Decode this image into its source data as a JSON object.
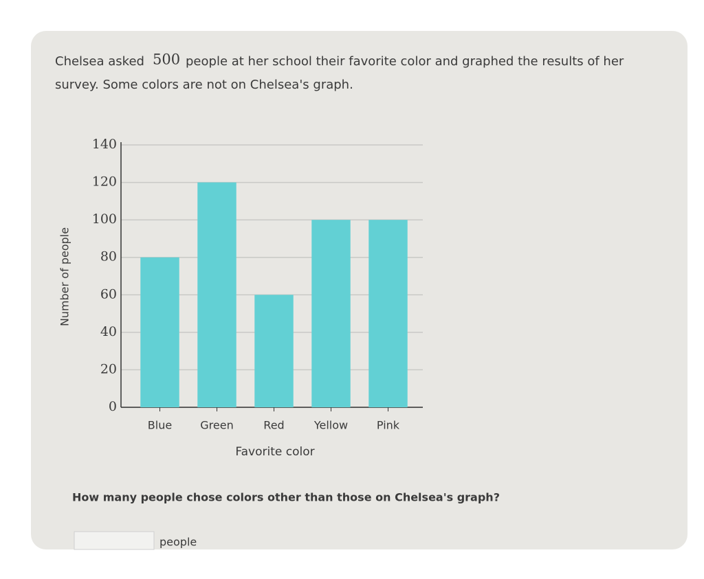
{
  "question": {
    "intro_start": "Chelsea asked",
    "total_people": 500,
    "intro_end": "people at her school their favorite color and graphed the results of her",
    "intro_line2": "survey. Some colors are not on Chelsea's graph.",
    "prompt": "How many people chose colors other than those on Chelsea's graph?",
    "unit": "people"
  },
  "chart_data": {
    "type": "bar",
    "categories": [
      "Blue",
      "Green",
      "Red",
      "Yellow",
      "Pink"
    ],
    "values": [
      80,
      120,
      60,
      100,
      100
    ],
    "color": "#62d0d4",
    "xlabel": "Favorite color",
    "ylabel": "Number of people",
    "ylim": [
      0,
      140
    ],
    "yticks": [
      0,
      20,
      40,
      60,
      80,
      100,
      120,
      140
    ],
    "grid": true
  }
}
